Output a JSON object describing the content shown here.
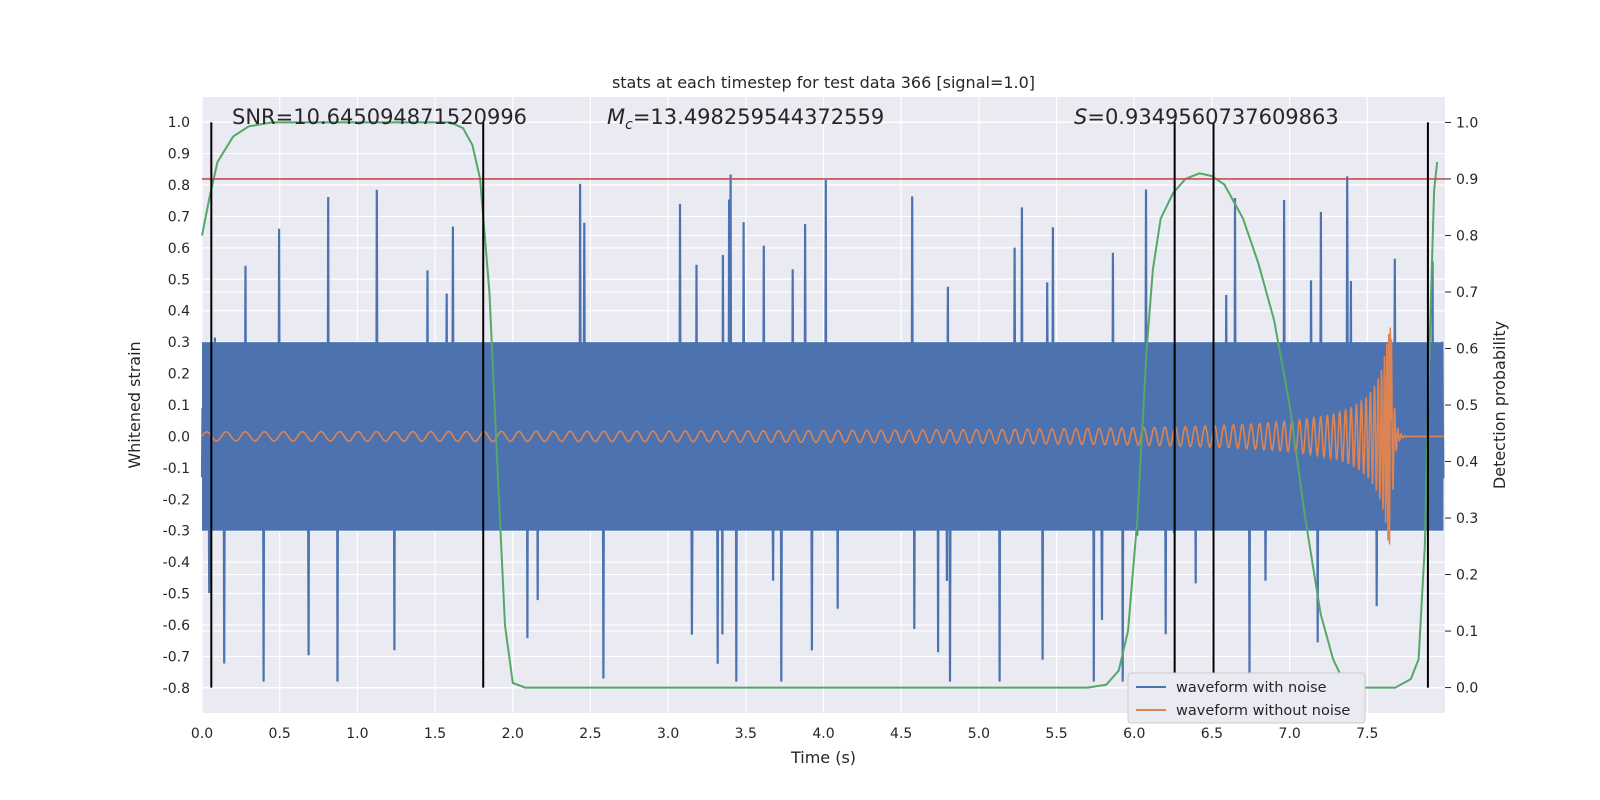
{
  "chart_data": {
    "type": "line",
    "title": "stats at each timestep for test data 366 [signal=1.0]",
    "xlabel": "Time (s)",
    "ylabel": "Whitened strain",
    "y2label": "Detection probability",
    "xlim": [
      0.0,
      8.0
    ],
    "ylim": [
      -0.88,
      1.08
    ],
    "y2lim": [
      -0.045,
      1.045
    ],
    "x_ticks": [
      "0.0",
      "0.5",
      "1.0",
      "1.5",
      "2.0",
      "2.5",
      "3.0",
      "3.5",
      "4.0",
      "4.5",
      "5.0",
      "5.5",
      "6.0",
      "6.5",
      "7.0",
      "7.5"
    ],
    "y_ticks": [
      "1.0",
      "0.9",
      "0.8",
      "0.7",
      "0.6",
      "0.5",
      "0.4",
      "0.3",
      "0.2",
      "0.1",
      "0.0",
      "-0.1",
      "-0.2",
      "-0.3",
      "-0.4",
      "-0.5",
      "-0.6",
      "-0.7",
      "-0.8"
    ],
    "y2_ticks": [
      "1.0",
      "0.9",
      "0.8",
      "0.7",
      "0.6",
      "0.5",
      "0.4",
      "0.3",
      "0.2",
      "0.1",
      "0.0"
    ],
    "grid": true,
    "legend_position": "lower-right",
    "stats": {
      "snr_text": "SNR=10.645094871520996",
      "mc_value": "=13.498259544372559",
      "s_value": "=0.9349560737609863"
    },
    "threshold_probability": 0.9,
    "event_markers_x": [
      0.06,
      1.81,
      6.26,
      6.51,
      7.89
    ],
    "series": [
      {
        "name": "waveform with noise",
        "color": "#4c72b0",
        "description_envelope": {
          "typical_max": 0.35,
          "typical_min": -0.4,
          "peak_max": 1.0,
          "peak_min": -0.78
        }
      },
      {
        "name": "waveform without noise",
        "color": "#dd8452",
        "chirp": {
          "start_time": 0.0,
          "merger_time": 7.65,
          "amplitude_start": 0.01,
          "amplitude_peak_max": 0.43,
          "amplitude_peak_min": -0.49
        }
      },
      {
        "name": "detection probability",
        "color": "#55a868",
        "axis": "right",
        "points": [
          [
            0.0,
            0.8
          ],
          [
            0.05,
            0.87
          ],
          [
            0.1,
            0.93
          ],
          [
            0.2,
            0.975
          ],
          [
            0.3,
            0.993
          ],
          [
            0.45,
            1.0
          ],
          [
            1.0,
            1.0
          ],
          [
            1.6,
            1.0
          ],
          [
            1.68,
            0.99
          ],
          [
            1.74,
            0.96
          ],
          [
            1.79,
            0.9
          ],
          [
            1.85,
            0.7
          ],
          [
            1.9,
            0.4
          ],
          [
            1.95,
            0.11
          ],
          [
            2.0,
            0.008
          ],
          [
            2.08,
            0.0
          ],
          [
            5.7,
            0.0
          ],
          [
            5.82,
            0.005
          ],
          [
            5.9,
            0.03
          ],
          [
            5.96,
            0.1
          ],
          [
            6.02,
            0.3
          ],
          [
            6.08,
            0.6
          ],
          [
            6.12,
            0.74
          ],
          [
            6.17,
            0.83
          ],
          [
            6.25,
            0.875
          ],
          [
            6.33,
            0.9
          ],
          [
            6.42,
            0.91
          ],
          [
            6.5,
            0.905
          ],
          [
            6.58,
            0.89
          ],
          [
            6.7,
            0.83
          ],
          [
            6.8,
            0.75
          ],
          [
            6.9,
            0.65
          ],
          [
            7.0,
            0.5
          ],
          [
            7.1,
            0.3
          ],
          [
            7.2,
            0.13
          ],
          [
            7.28,
            0.05
          ],
          [
            7.35,
            0.01
          ],
          [
            7.42,
            0.0
          ],
          [
            7.68,
            0.0
          ],
          [
            7.78,
            0.015
          ],
          [
            7.83,
            0.05
          ],
          [
            7.87,
            0.25
          ],
          [
            7.9,
            0.6
          ],
          [
            7.93,
            0.88
          ],
          [
            7.95,
            0.93
          ]
        ]
      },
      {
        "name": "threshold",
        "color": "#c44e52",
        "axis": "right"
      }
    ]
  },
  "legend": [
    {
      "label": "waveform with noise",
      "color": "#4c72b0"
    },
    {
      "label": "waveform without noise",
      "color": "#dd8452"
    }
  ]
}
